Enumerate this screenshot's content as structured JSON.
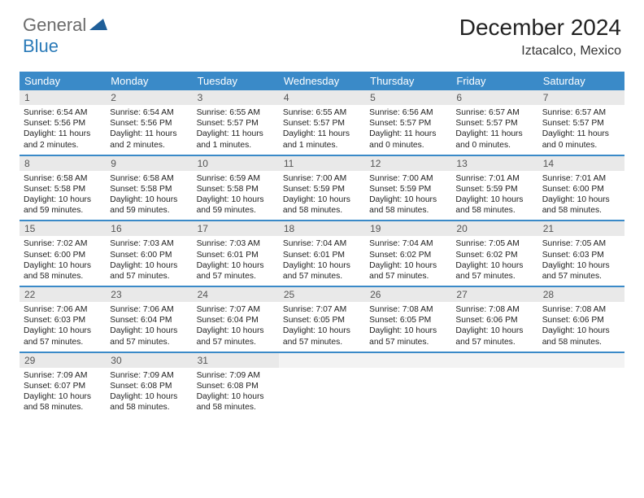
{
  "logo": {
    "text1": "General",
    "text2": "Blue"
  },
  "title": "December 2024",
  "location": "Iztacalco, Mexico",
  "colors": {
    "header_bg": "#3a8ac8",
    "header_text": "#ffffff",
    "daynum_bg": "#e9e9e9",
    "daynum_text": "#555555",
    "body_text": "#222222",
    "rule": "#3a8ac8",
    "logo_gray": "#6b6b6b",
    "logo_blue": "#2a7ab8",
    "logo_tri": "#1f5f99"
  },
  "typography": {
    "title_fontsize": 28,
    "location_fontsize": 16,
    "dow_fontsize": 13,
    "daynum_fontsize": 12,
    "body_fontsize": 10.3
  },
  "days_of_week": [
    "Sunday",
    "Monday",
    "Tuesday",
    "Wednesday",
    "Thursday",
    "Friday",
    "Saturday"
  ],
  "weeks": [
    [
      {
        "n": "1",
        "sunrise": "6:54 AM",
        "sunset": "5:56 PM",
        "dl_h": "11",
        "dl_m": "2"
      },
      {
        "n": "2",
        "sunrise": "6:54 AM",
        "sunset": "5:56 PM",
        "dl_h": "11",
        "dl_m": "2"
      },
      {
        "n": "3",
        "sunrise": "6:55 AM",
        "sunset": "5:57 PM",
        "dl_h": "11",
        "dl_m": "1"
      },
      {
        "n": "4",
        "sunrise": "6:55 AM",
        "sunset": "5:57 PM",
        "dl_h": "11",
        "dl_m": "1"
      },
      {
        "n": "5",
        "sunrise": "6:56 AM",
        "sunset": "5:57 PM",
        "dl_h": "11",
        "dl_m": "0"
      },
      {
        "n": "6",
        "sunrise": "6:57 AM",
        "sunset": "5:57 PM",
        "dl_h": "11",
        "dl_m": "0"
      },
      {
        "n": "7",
        "sunrise": "6:57 AM",
        "sunset": "5:57 PM",
        "dl_h": "11",
        "dl_m": "0"
      }
    ],
    [
      {
        "n": "8",
        "sunrise": "6:58 AM",
        "sunset": "5:58 PM",
        "dl_h": "10",
        "dl_m": "59"
      },
      {
        "n": "9",
        "sunrise": "6:58 AM",
        "sunset": "5:58 PM",
        "dl_h": "10",
        "dl_m": "59"
      },
      {
        "n": "10",
        "sunrise": "6:59 AM",
        "sunset": "5:58 PM",
        "dl_h": "10",
        "dl_m": "59"
      },
      {
        "n": "11",
        "sunrise": "7:00 AM",
        "sunset": "5:59 PM",
        "dl_h": "10",
        "dl_m": "58"
      },
      {
        "n": "12",
        "sunrise": "7:00 AM",
        "sunset": "5:59 PM",
        "dl_h": "10",
        "dl_m": "58"
      },
      {
        "n": "13",
        "sunrise": "7:01 AM",
        "sunset": "5:59 PM",
        "dl_h": "10",
        "dl_m": "58"
      },
      {
        "n": "14",
        "sunrise": "7:01 AM",
        "sunset": "6:00 PM",
        "dl_h": "10",
        "dl_m": "58"
      }
    ],
    [
      {
        "n": "15",
        "sunrise": "7:02 AM",
        "sunset": "6:00 PM",
        "dl_h": "10",
        "dl_m": "58"
      },
      {
        "n": "16",
        "sunrise": "7:03 AM",
        "sunset": "6:00 PM",
        "dl_h": "10",
        "dl_m": "57"
      },
      {
        "n": "17",
        "sunrise": "7:03 AM",
        "sunset": "6:01 PM",
        "dl_h": "10",
        "dl_m": "57"
      },
      {
        "n": "18",
        "sunrise": "7:04 AM",
        "sunset": "6:01 PM",
        "dl_h": "10",
        "dl_m": "57"
      },
      {
        "n": "19",
        "sunrise": "7:04 AM",
        "sunset": "6:02 PM",
        "dl_h": "10",
        "dl_m": "57"
      },
      {
        "n": "20",
        "sunrise": "7:05 AM",
        "sunset": "6:02 PM",
        "dl_h": "10",
        "dl_m": "57"
      },
      {
        "n": "21",
        "sunrise": "7:05 AM",
        "sunset": "6:03 PM",
        "dl_h": "10",
        "dl_m": "57"
      }
    ],
    [
      {
        "n": "22",
        "sunrise": "7:06 AM",
        "sunset": "6:03 PM",
        "dl_h": "10",
        "dl_m": "57"
      },
      {
        "n": "23",
        "sunrise": "7:06 AM",
        "sunset": "6:04 PM",
        "dl_h": "10",
        "dl_m": "57"
      },
      {
        "n": "24",
        "sunrise": "7:07 AM",
        "sunset": "6:04 PM",
        "dl_h": "10",
        "dl_m": "57"
      },
      {
        "n": "25",
        "sunrise": "7:07 AM",
        "sunset": "6:05 PM",
        "dl_h": "10",
        "dl_m": "57"
      },
      {
        "n": "26",
        "sunrise": "7:08 AM",
        "sunset": "6:05 PM",
        "dl_h": "10",
        "dl_m": "57"
      },
      {
        "n": "27",
        "sunrise": "7:08 AM",
        "sunset": "6:06 PM",
        "dl_h": "10",
        "dl_m": "57"
      },
      {
        "n": "28",
        "sunrise": "7:08 AM",
        "sunset": "6:06 PM",
        "dl_h": "10",
        "dl_m": "58"
      }
    ],
    [
      {
        "n": "29",
        "sunrise": "7:09 AM",
        "sunset": "6:07 PM",
        "dl_h": "10",
        "dl_m": "58"
      },
      {
        "n": "30",
        "sunrise": "7:09 AM",
        "sunset": "6:08 PM",
        "dl_h": "10",
        "dl_m": "58"
      },
      {
        "n": "31",
        "sunrise": "7:09 AM",
        "sunset": "6:08 PM",
        "dl_h": "10",
        "dl_m": "58"
      },
      null,
      null,
      null,
      null
    ]
  ],
  "labels": {
    "sunrise": "Sunrise:",
    "sunset": "Sunset:",
    "daylight": "Daylight:",
    "hours": "hours",
    "and": "and",
    "minutes": "minutes."
  }
}
